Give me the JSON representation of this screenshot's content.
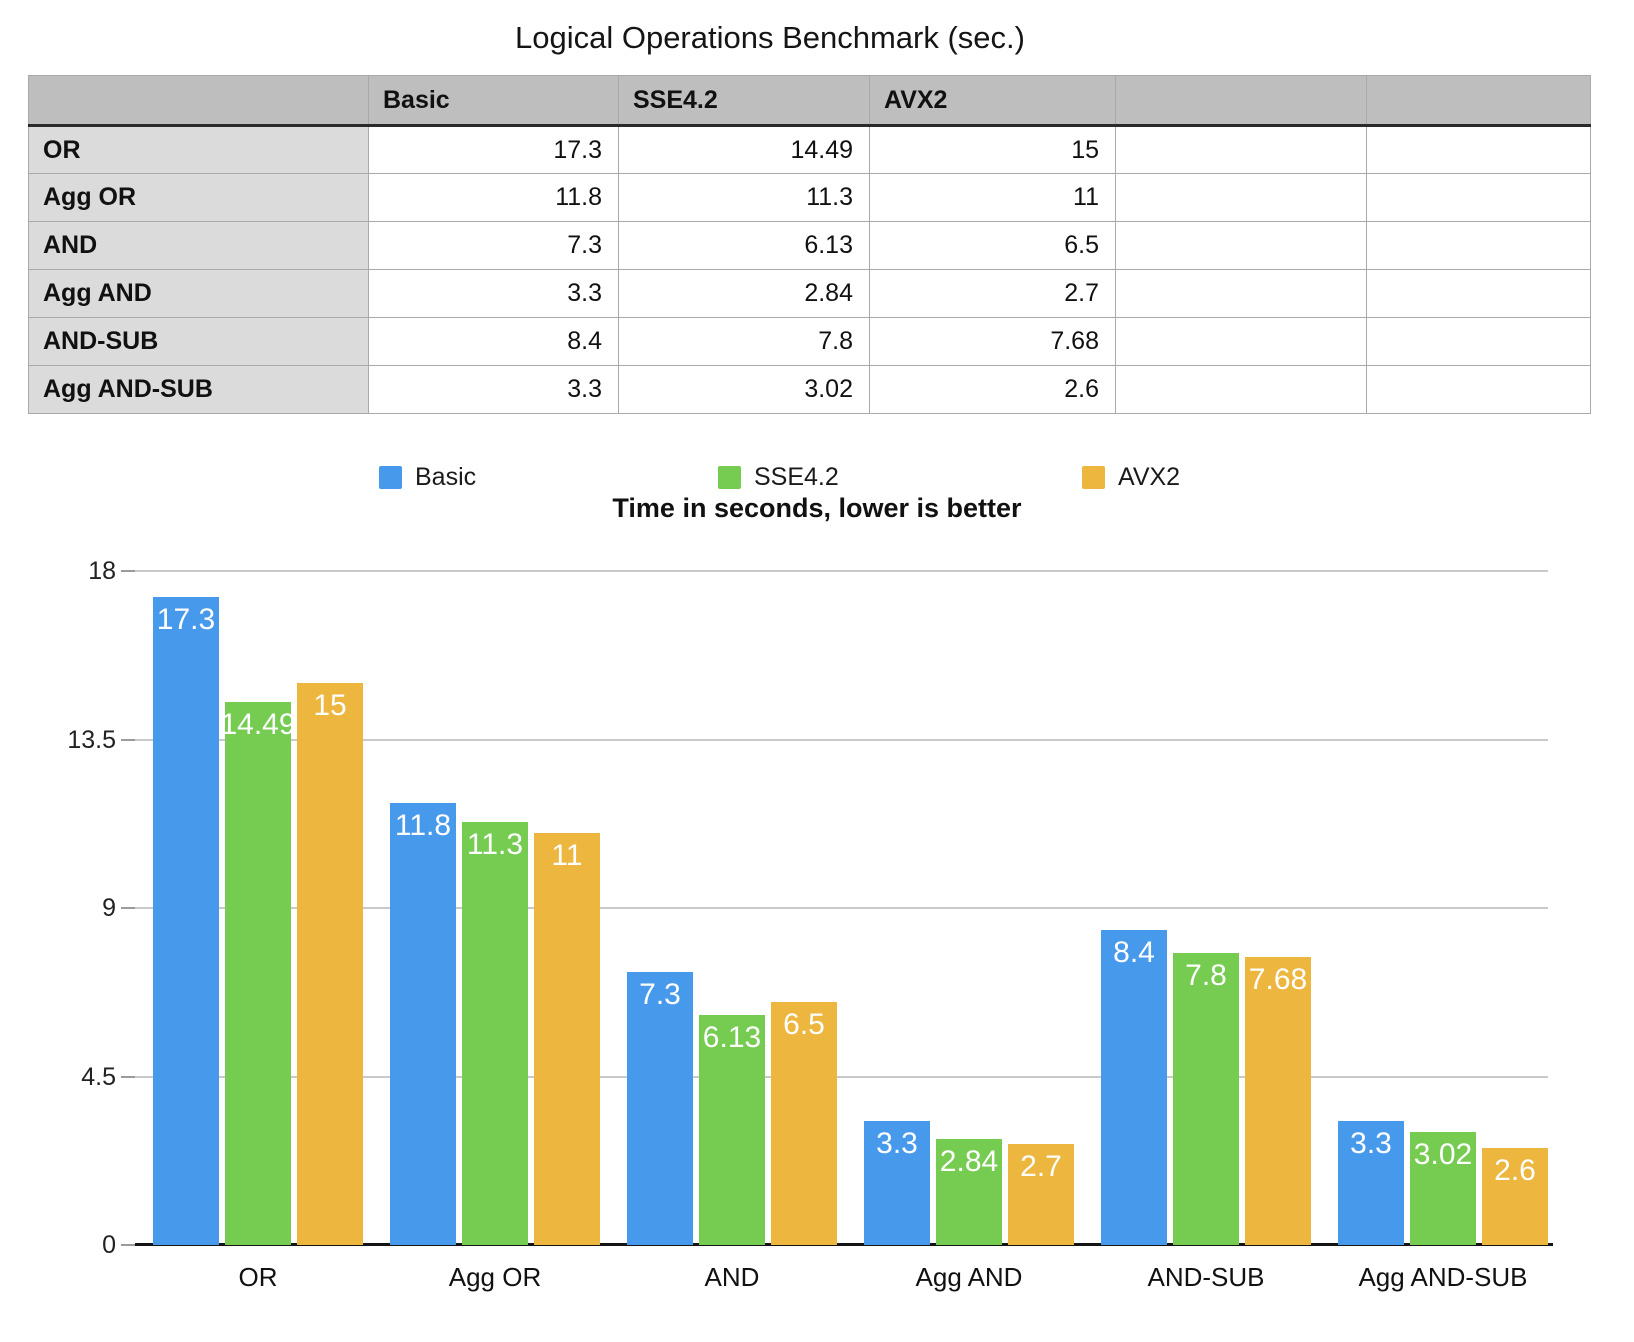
{
  "title": "Logical Operations Benchmark (sec.)",
  "subtitle": "Time in seconds, lower is better",
  "table": {
    "columns": [
      "",
      "Basic",
      "SSE4.2",
      "AVX2",
      "",
      ""
    ],
    "rows": [
      {
        "label": "OR",
        "values": [
          "17.3",
          "14.49",
          "15",
          "",
          ""
        ]
      },
      {
        "label": "Agg OR",
        "values": [
          "11.8",
          "11.3",
          "11",
          "",
          ""
        ]
      },
      {
        "label": "AND",
        "values": [
          "7.3",
          "6.13",
          "6.5",
          "",
          ""
        ]
      },
      {
        "label": "Agg AND",
        "values": [
          "3.3",
          "2.84",
          "2.7",
          "",
          ""
        ]
      },
      {
        "label": "AND-SUB",
        "values": [
          "8.4",
          "7.8",
          "7.68",
          "",
          ""
        ]
      },
      {
        "label": "Agg AND-SUB",
        "values": [
          "3.3",
          "3.02",
          "2.6",
          "",
          ""
        ]
      }
    ]
  },
  "chart_data": {
    "type": "bar",
    "title": "Time in seconds, lower is better",
    "categories": [
      "OR",
      "Agg OR",
      "AND",
      "Agg AND",
      "AND-SUB",
      "Agg AND-SUB"
    ],
    "series": [
      {
        "name": "Basic",
        "color": "#4799EB",
        "values": [
          17.3,
          11.8,
          7.3,
          3.3,
          8.4,
          3.3
        ]
      },
      {
        "name": "SSE4.2",
        "color": "#76CB51",
        "values": [
          14.49,
          11.3,
          6.13,
          2.84,
          7.8,
          3.02
        ]
      },
      {
        "name": "AVX2",
        "color": "#ECB63F",
        "values": [
          15,
          11,
          6.5,
          2.7,
          7.68,
          2.6
        ]
      }
    ],
    "xlabel": "",
    "ylabel": "",
    "ylim": [
      0,
      18
    ],
    "y_ticks": [
      18,
      13.5,
      9,
      4.5,
      0
    ],
    "grid": true,
    "legend_position": "top",
    "value_labels": "white, inside top of each bar"
  },
  "colors": {
    "grid": "#C9C9C9",
    "axis_tick": "#9B9B9B",
    "baseline": "#141414",
    "table_header_bg": "#BEBEBE",
    "table_label_bg": "#DBDBDB"
  }
}
